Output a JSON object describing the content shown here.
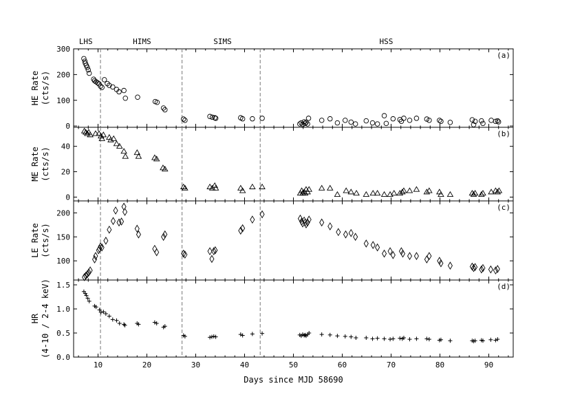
{
  "chart_data": {
    "type": "scatter",
    "xlabel": "Days since MJD 58690",
    "xlim": [
      5,
      95
    ],
    "xticks": [
      10,
      20,
      30,
      40,
      50,
      60,
      70,
      80,
      90
    ],
    "state_boundaries": [
      10.5,
      27.2,
      43.2
    ],
    "states": [
      {
        "label": "LHS",
        "x": 7.5
      },
      {
        "label": "HIMS",
        "x": 19
      },
      {
        "label": "SIMS",
        "x": 35.5
      },
      {
        "label": "HSS",
        "x": 69
      }
    ],
    "panels": [
      {
        "tag": "(a)",
        "ylabel_lines": [
          "HE Rate",
          "(cts/s)"
        ],
        "marker": "circle",
        "ylim": [
          -5,
          300
        ],
        "yticks": [
          0,
          100,
          200,
          300
        ],
        "points": [
          [
            7.1,
            262
          ],
          [
            7.3,
            252
          ],
          [
            7.4,
            244
          ],
          [
            7.6,
            236
          ],
          [
            7.8,
            228
          ],
          [
            8.0,
            218
          ],
          [
            8.2,
            205
          ],
          [
            9.1,
            182
          ],
          [
            9.3,
            176
          ],
          [
            9.6,
            172
          ],
          [
            9.9,
            168
          ],
          [
            10.2,
            164
          ],
          [
            10.5,
            155
          ],
          [
            10.8,
            150
          ],
          [
            11.3,
            180
          ],
          [
            11.9,
            165
          ],
          [
            12.3,
            158
          ],
          [
            13.0,
            152
          ],
          [
            13.8,
            142
          ],
          [
            14.3,
            133
          ],
          [
            15.3,
            138
          ],
          [
            15.6,
            108
          ],
          [
            18.1,
            112
          ],
          [
            21.7,
            95
          ],
          [
            22.1,
            92
          ],
          [
            23.4,
            70
          ],
          [
            23.7,
            63
          ],
          [
            27.5,
            27
          ],
          [
            27.8,
            22
          ],
          [
            32.9,
            37
          ],
          [
            33.4,
            34
          ],
          [
            33.9,
            32
          ],
          [
            34.1,
            30
          ],
          [
            39.2,
            32
          ],
          [
            39.6,
            28
          ],
          [
            41.6,
            28
          ],
          [
            43.6,
            30
          ],
          [
            51.3,
            8
          ],
          [
            51.6,
            12
          ],
          [
            51.9,
            6
          ],
          [
            52.2,
            16
          ],
          [
            52.4,
            10
          ],
          [
            52.6,
            14
          ],
          [
            52.9,
            8
          ],
          [
            53.1,
            30
          ],
          [
            55.8,
            22
          ],
          [
            57.5,
            28
          ],
          [
            59.0,
            12
          ],
          [
            60.6,
            22
          ],
          [
            61.8,
            15
          ],
          [
            62.7,
            8
          ],
          [
            64.9,
            20
          ],
          [
            66.2,
            12
          ],
          [
            67.2,
            8
          ],
          [
            68.6,
            40
          ],
          [
            69.0,
            10
          ],
          [
            70.4,
            28
          ],
          [
            71.8,
            25
          ],
          [
            72.1,
            18
          ],
          [
            72.6,
            30
          ],
          [
            73.8,
            22
          ],
          [
            75.2,
            30
          ],
          [
            77.3,
            27
          ],
          [
            77.8,
            22
          ],
          [
            79.9,
            22
          ],
          [
            80.2,
            18
          ],
          [
            82.1,
            14
          ],
          [
            86.6,
            24
          ],
          [
            86.9,
            5
          ],
          [
            87.2,
            18
          ],
          [
            88.5,
            20
          ],
          [
            88.8,
            10
          ],
          [
            90.5,
            22
          ],
          [
            91.4,
            18
          ],
          [
            91.8,
            20
          ],
          [
            92.0,
            16
          ]
        ]
      },
      {
        "tag": "(b)",
        "ylabel_lines": [
          "ME Rate",
          "(cts/s)"
        ],
        "marker": "triangle",
        "ylim": [
          -3,
          55
        ],
        "yticks": [
          0,
          20,
          40
        ],
        "points": [
          [
            7.2,
            52
          ],
          [
            7.5,
            51
          ],
          [
            7.8,
            50
          ],
          [
            8.1,
            51
          ],
          [
            8.4,
            49
          ],
          [
            9.5,
            50
          ],
          [
            10.2,
            50
          ],
          [
            10.6,
            48
          ],
          [
            10.8,
            46
          ],
          [
            11.1,
            49
          ],
          [
            12.3,
            47
          ],
          [
            12.6,
            45
          ],
          [
            13.2,
            46
          ],
          [
            13.8,
            42
          ],
          [
            14.4,
            40
          ],
          [
            15.3,
            36
          ],
          [
            15.6,
            32
          ],
          [
            18.0,
            35
          ],
          [
            18.3,
            32
          ],
          [
            21.6,
            31
          ],
          [
            22.0,
            30
          ],
          [
            23.3,
            23
          ],
          [
            23.7,
            22
          ],
          [
            27.5,
            8
          ],
          [
            27.8,
            7
          ],
          [
            32.9,
            8
          ],
          [
            33.4,
            7
          ],
          [
            33.9,
            9
          ],
          [
            34.1,
            7
          ],
          [
            39.2,
            7
          ],
          [
            39.6,
            5
          ],
          [
            41.6,
            8
          ],
          [
            43.6,
            8
          ],
          [
            51.4,
            3
          ],
          [
            51.7,
            5
          ],
          [
            51.9,
            3
          ],
          [
            52.2,
            4
          ],
          [
            52.4,
            3
          ],
          [
            52.6,
            6
          ],
          [
            52.9,
            4
          ],
          [
            53.2,
            6
          ],
          [
            55.8,
            7
          ],
          [
            57.5,
            7
          ],
          [
            59.0,
            2
          ],
          [
            60.8,
            5
          ],
          [
            61.8,
            4
          ],
          [
            62.9,
            3
          ],
          [
            64.9,
            2
          ],
          [
            66.3,
            3
          ],
          [
            67.2,
            3
          ],
          [
            68.6,
            2
          ],
          [
            69.8,
            2
          ],
          [
            70.6,
            3
          ],
          [
            71.8,
            3
          ],
          [
            72.3,
            4
          ],
          [
            72.6,
            5
          ],
          [
            73.8,
            5
          ],
          [
            75.2,
            6
          ],
          [
            77.3,
            4
          ],
          [
            77.8,
            5
          ],
          [
            79.9,
            4
          ],
          [
            80.2,
            2
          ],
          [
            82.1,
            2
          ],
          [
            86.6,
            3
          ],
          [
            86.9,
            2
          ],
          [
            87.2,
            3
          ],
          [
            88.5,
            2
          ],
          [
            88.8,
            3
          ],
          [
            90.5,
            4
          ],
          [
            91.4,
            5
          ],
          [
            91.8,
            4
          ],
          [
            92.1,
            5
          ]
        ]
      },
      {
        "tag": "(c)",
        "ylabel_lines": [
          "LE Rate",
          "(cts/s)"
        ],
        "marker": "diamond",
        "ylim": [
          60,
          225
        ],
        "yticks": [
          100,
          150,
          200
        ],
        "points": [
          [
            7.2,
            66
          ],
          [
            7.5,
            69
          ],
          [
            7.8,
            72
          ],
          [
            8.1,
            76
          ],
          [
            8.4,
            80
          ],
          [
            9.3,
            103
          ],
          [
            9.5,
            110
          ],
          [
            10.1,
            122
          ],
          [
            10.3,
            125
          ],
          [
            10.5,
            130
          ],
          [
            10.8,
            128
          ],
          [
            11.6,
            142
          ],
          [
            12.3,
            165
          ],
          [
            13.1,
            183
          ],
          [
            13.6,
            205
          ],
          [
            14.3,
            180
          ],
          [
            14.8,
            182
          ],
          [
            15.3,
            213
          ],
          [
            15.5,
            202
          ],
          [
            18.0,
            167
          ],
          [
            18.3,
            155
          ],
          [
            21.6,
            125
          ],
          [
            22.0,
            118
          ],
          [
            23.4,
            150
          ],
          [
            23.7,
            155
          ],
          [
            27.5,
            115
          ],
          [
            27.8,
            113
          ],
          [
            32.9,
            120
          ],
          [
            33.3,
            104
          ],
          [
            33.7,
            120
          ],
          [
            34.0,
            122
          ],
          [
            39.2,
            163
          ],
          [
            39.6,
            168
          ],
          [
            41.6,
            186
          ],
          [
            43.6,
            197
          ],
          [
            51.4,
            188
          ],
          [
            51.7,
            182
          ],
          [
            51.9,
            178
          ],
          [
            52.2,
            184
          ],
          [
            52.4,
            180
          ],
          [
            52.6,
            176
          ],
          [
            52.9,
            180
          ],
          [
            53.2,
            186
          ],
          [
            55.8,
            180
          ],
          [
            57.5,
            172
          ],
          [
            59.2,
            160
          ],
          [
            60.7,
            155
          ],
          [
            61.8,
            158
          ],
          [
            62.7,
            150
          ],
          [
            64.9,
            136
          ],
          [
            66.3,
            133
          ],
          [
            67.2,
            128
          ],
          [
            68.6,
            115
          ],
          [
            69.8,
            120
          ],
          [
            70.4,
            112
          ],
          [
            72.1,
            120
          ],
          [
            72.4,
            115
          ],
          [
            73.8,
            110
          ],
          [
            75.2,
            110
          ],
          [
            77.3,
            103
          ],
          [
            77.8,
            110
          ],
          [
            79.9,
            100
          ],
          [
            80.2,
            95
          ],
          [
            82.1,
            90
          ],
          [
            86.6,
            88
          ],
          [
            86.9,
            85
          ],
          [
            87.2,
            87
          ],
          [
            88.5,
            82
          ],
          [
            88.8,
            85
          ],
          [
            90.4,
            82
          ],
          [
            91.4,
            80
          ],
          [
            91.8,
            83
          ]
        ]
      },
      {
        "tag": "(d)",
        "ylabel_lines": [
          "HR",
          "(4-10 / 2-4 keV)"
        ],
        "marker": "plus",
        "ylim": [
          0,
          1.6
        ],
        "yticks": [
          0.0,
          0.5,
          1.0,
          1.5
        ],
        "points": [
          [
            7.1,
            1.36
          ],
          [
            7.4,
            1.32
          ],
          [
            7.6,
            1.28
          ],
          [
            7.9,
            1.22
          ],
          [
            8.2,
            1.16
          ],
          [
            9.3,
            1.06
          ],
          [
            9.6,
            1.04
          ],
          [
            10.3,
            0.98
          ],
          [
            10.6,
            0.93
          ],
          [
            11.1,
            0.94
          ],
          [
            11.6,
            0.9
          ],
          [
            12.3,
            0.85
          ],
          [
            13.0,
            0.78
          ],
          [
            13.8,
            0.76
          ],
          [
            14.4,
            0.7
          ],
          [
            15.3,
            0.68
          ],
          [
            15.5,
            0.66
          ],
          [
            18.0,
            0.7
          ],
          [
            18.3,
            0.68
          ],
          [
            21.6,
            0.72
          ],
          [
            22.0,
            0.7
          ],
          [
            23.4,
            0.62
          ],
          [
            23.7,
            0.64
          ],
          [
            27.5,
            0.45
          ],
          [
            27.8,
            0.43
          ],
          [
            32.9,
            0.41
          ],
          [
            33.3,
            0.42
          ],
          [
            33.7,
            0.43
          ],
          [
            34.1,
            0.42
          ],
          [
            39.2,
            0.47
          ],
          [
            39.6,
            0.45
          ],
          [
            41.6,
            0.48
          ],
          [
            43.6,
            0.49
          ],
          [
            51.3,
            0.46
          ],
          [
            51.6,
            0.44
          ],
          [
            51.9,
            0.47
          ],
          [
            52.2,
            0.45
          ],
          [
            52.4,
            0.46
          ],
          [
            52.6,
            0.44
          ],
          [
            52.9,
            0.47
          ],
          [
            53.2,
            0.5
          ],
          [
            55.8,
            0.47
          ],
          [
            57.5,
            0.46
          ],
          [
            59.0,
            0.44
          ],
          [
            60.6,
            0.43
          ],
          [
            61.8,
            0.42
          ],
          [
            62.8,
            0.4
          ],
          [
            64.9,
            0.4
          ],
          [
            66.2,
            0.38
          ],
          [
            67.2,
            0.39
          ],
          [
            68.6,
            0.38
          ],
          [
            69.8,
            0.37
          ],
          [
            70.4,
            0.38
          ],
          [
            71.8,
            0.39
          ],
          [
            72.3,
            0.38
          ],
          [
            72.6,
            0.4
          ],
          [
            73.8,
            0.37
          ],
          [
            75.2,
            0.38
          ],
          [
            77.3,
            0.38
          ],
          [
            77.8,
            0.37
          ],
          [
            79.9,
            0.35
          ],
          [
            80.2,
            0.36
          ],
          [
            82.1,
            0.34
          ],
          [
            86.6,
            0.34
          ],
          [
            86.9,
            0.33
          ],
          [
            87.2,
            0.34
          ],
          [
            88.5,
            0.35
          ],
          [
            88.8,
            0.34
          ],
          [
            90.4,
            0.36
          ],
          [
            91.4,
            0.35
          ],
          [
            91.8,
            0.37
          ]
        ]
      }
    ]
  }
}
